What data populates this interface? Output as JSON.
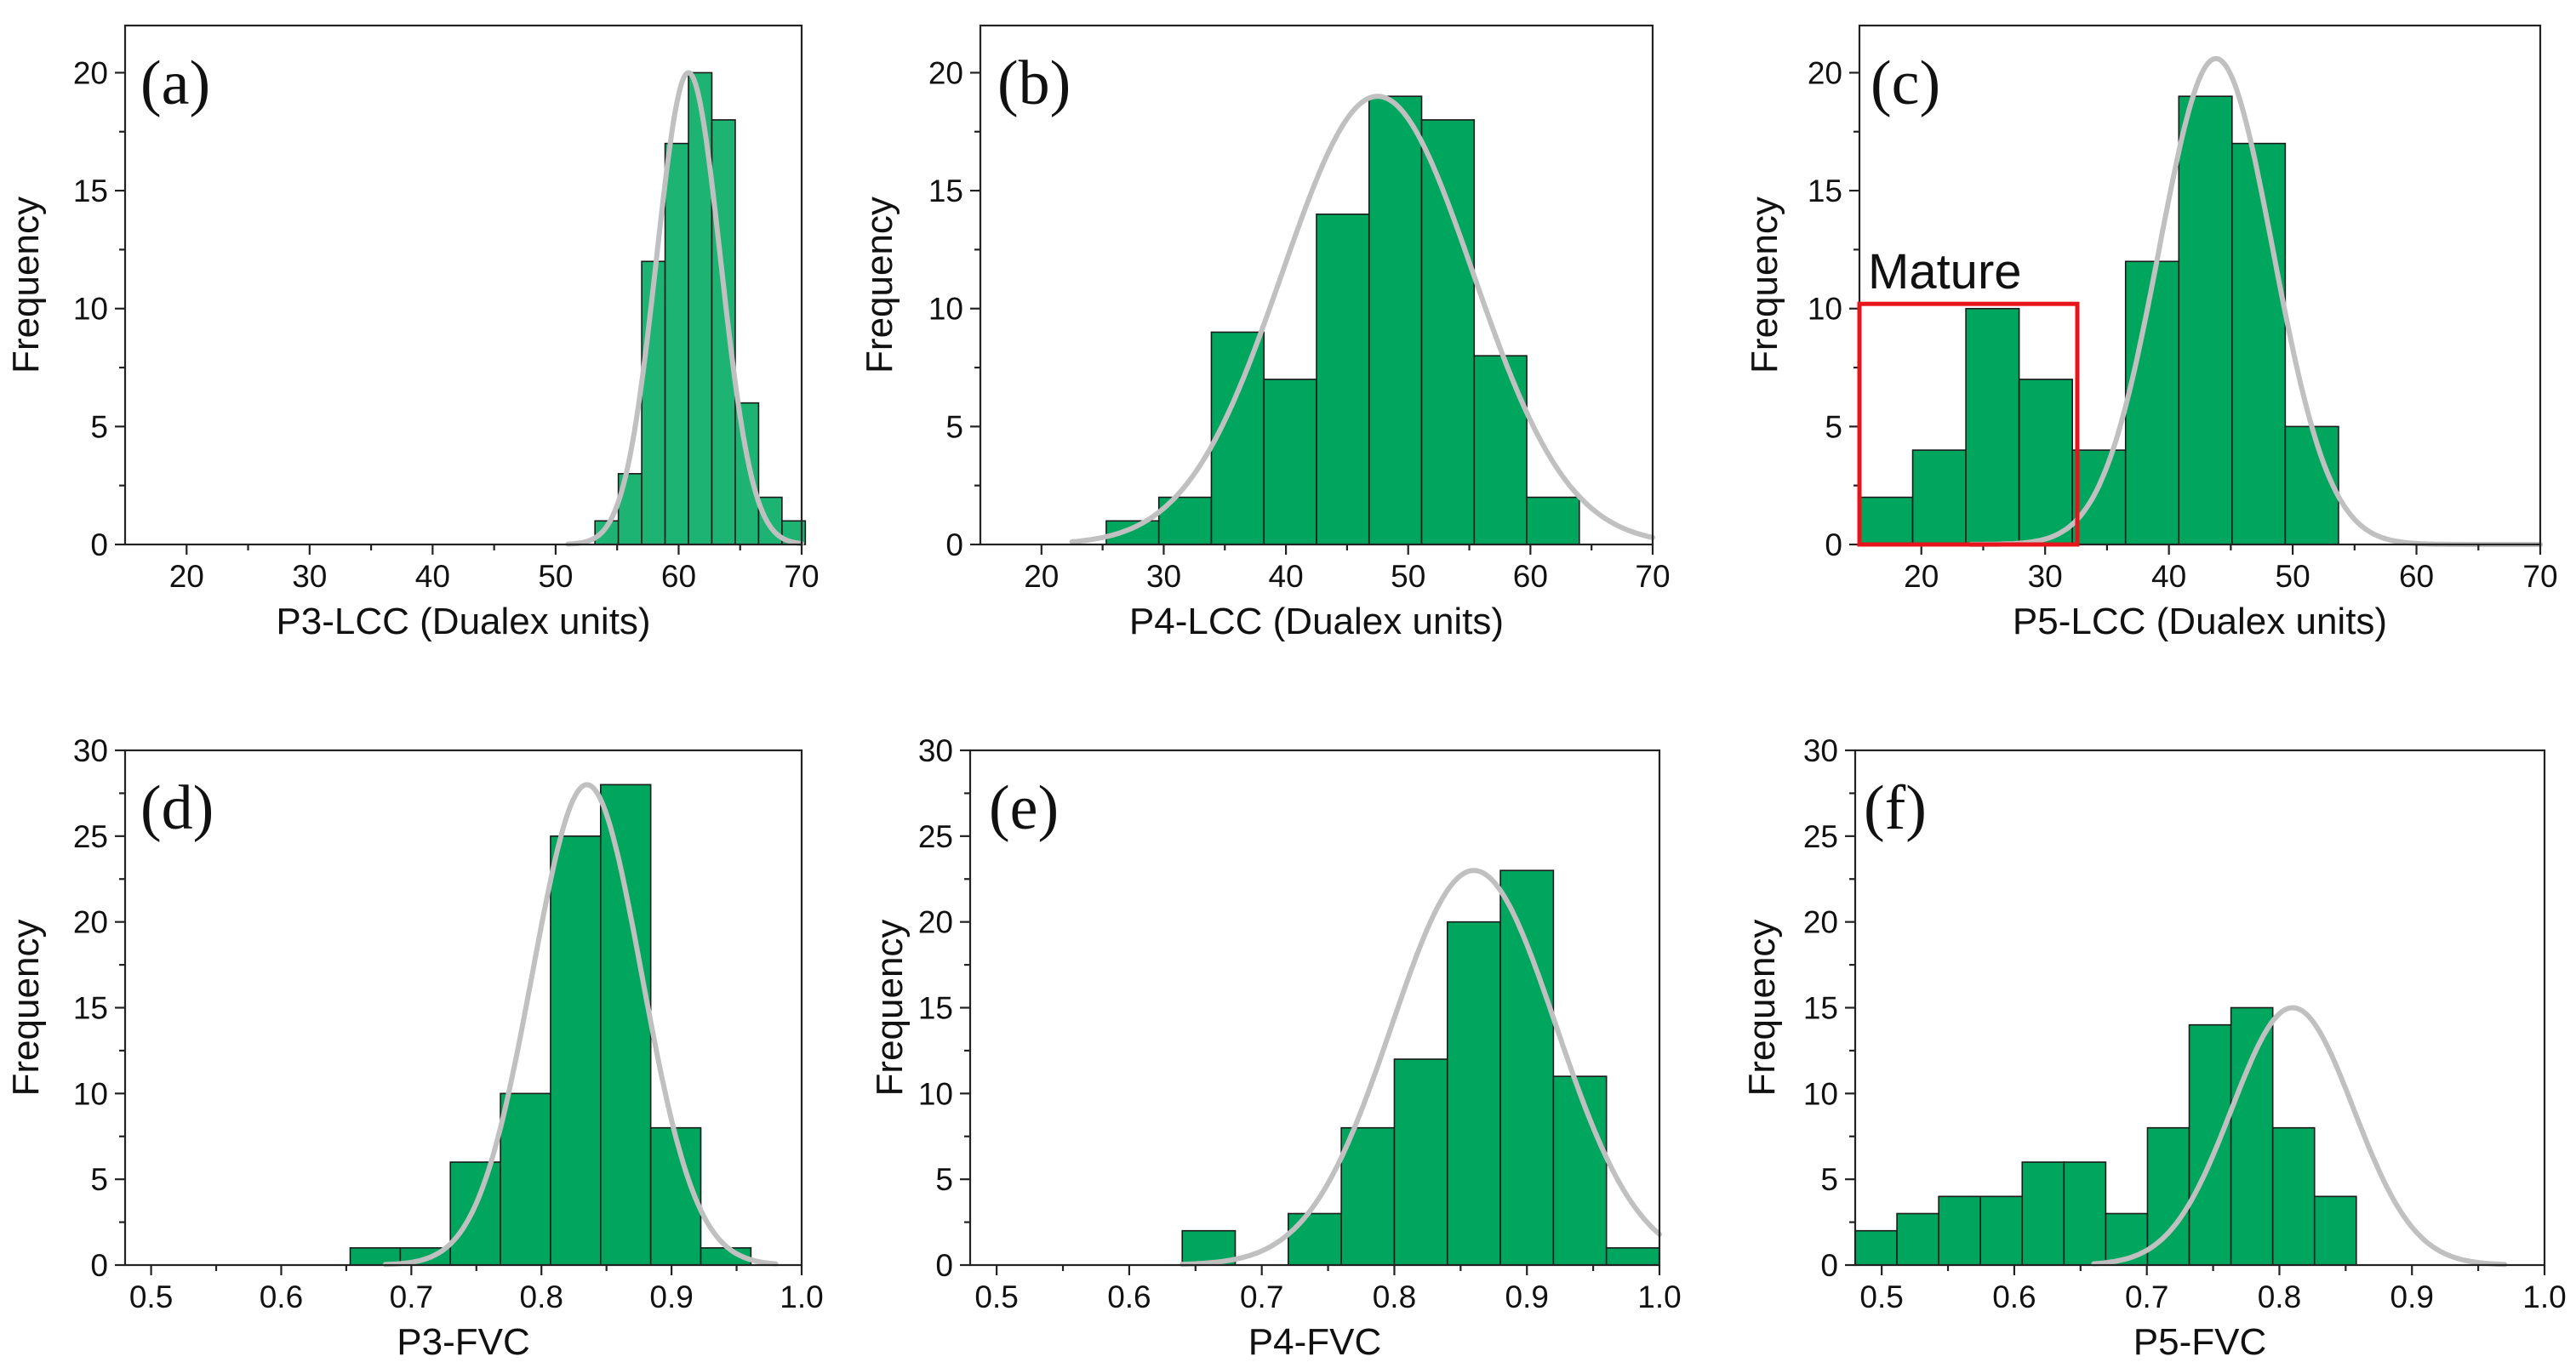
{
  "colors": {
    "bar_fill": "#00a65e",
    "bar_fill_alt": "#1db373",
    "curve": "#c0c0c0",
    "highlight": "#e8141b"
  },
  "chart_data": [
    {
      "panel": "(a)",
      "type": "bar",
      "title": "",
      "xlabel": "P3-LCC (Dualex units)",
      "ylabel": "Frequency",
      "xlim": [
        15,
        70
      ],
      "ylim": [
        0,
        22
      ],
      "xticks": [
        20,
        30,
        40,
        50,
        60,
        70
      ],
      "xtick_labels": [
        "20",
        "30",
        "40",
        "50",
        "60",
        "70"
      ],
      "yticks": [
        0,
        5,
        10,
        15,
        20
      ],
      "ytick_labels": [
        "0",
        "5",
        "10",
        "15",
        "20"
      ],
      "bin_width": 1.9,
      "bins": [
        {
          "x0": 53.2,
          "value": 1
        },
        {
          "x0": 55.1,
          "value": 3
        },
        {
          "x0": 57.0,
          "value": 12
        },
        {
          "x0": 58.9,
          "value": 17
        },
        {
          "x0": 60.8,
          "value": 20
        },
        {
          "x0": 62.7,
          "value": 18
        },
        {
          "x0": 64.6,
          "value": 6
        },
        {
          "x0": 66.5,
          "value": 2
        },
        {
          "x0": 68.4,
          "value": 1
        }
      ],
      "fit": {
        "mean": 60.8,
        "sd": 2.6,
        "peak": 20,
        "range": [
          51.0,
          70.0
        ]
      }
    },
    {
      "panel": "(b)",
      "type": "bar",
      "title": "",
      "xlabel": "P4-LCC (Dualex units)",
      "ylabel": "Frequency",
      "xlim": [
        15,
        70
      ],
      "ylim": [
        0,
        22
      ],
      "xticks": [
        20,
        30,
        40,
        50,
        60,
        70
      ],
      "xtick_labels": [
        "20",
        "30",
        "40",
        "50",
        "60",
        "70"
      ],
      "yticks": [
        0,
        5,
        10,
        15,
        20
      ],
      "ytick_labels": [
        "0",
        "5",
        "10",
        "15",
        "20"
      ],
      "bin_width": 4.3,
      "bins": [
        {
          "x0": 25.3,
          "value": 1
        },
        {
          "x0": 29.6,
          "value": 2
        },
        {
          "x0": 33.9,
          "value": 9
        },
        {
          "x0": 38.2,
          "value": 7
        },
        {
          "x0": 42.5,
          "value": 14
        },
        {
          "x0": 46.8,
          "value": 19
        },
        {
          "x0": 51.1,
          "value": 18
        },
        {
          "x0": 55.4,
          "value": 8
        },
        {
          "x0": 59.7,
          "value": 2
        }
      ],
      "fit": {
        "mean": 47.5,
        "sd": 7.8,
        "peak": 19,
        "range": [
          22.5,
          70.0
        ]
      }
    },
    {
      "panel": "(c)",
      "type": "bar",
      "title": "",
      "xlabel": "P5-LCC (Dualex units)",
      "ylabel": "Frequency",
      "xlim": [
        15,
        70
      ],
      "ylim": [
        0,
        22
      ],
      "xticks": [
        20,
        30,
        40,
        50,
        60,
        70
      ],
      "xtick_labels": [
        "20",
        "30",
        "40",
        "50",
        "60",
        "70"
      ],
      "yticks": [
        0,
        5,
        10,
        15,
        20
      ],
      "ytick_labels": [
        "0",
        "5",
        "10",
        "15",
        "20"
      ],
      "bin_width": 4.3,
      "bins": [
        {
          "x0": 15.0,
          "value": 2
        },
        {
          "x0": 19.3,
          "value": 4
        },
        {
          "x0": 23.6,
          "value": 10
        },
        {
          "x0": 27.9,
          "value": 7
        },
        {
          "x0": 32.2,
          "value": 4
        },
        {
          "x0": 36.5,
          "value": 12
        },
        {
          "x0": 40.8,
          "value": 19
        },
        {
          "x0": 45.1,
          "value": 17
        },
        {
          "x0": 49.4,
          "value": 5
        }
      ],
      "fit": {
        "mean": 43.8,
        "sd": 4.6,
        "peak": 20.6,
        "range": [
          24.0,
          70.0
        ]
      },
      "annotation": {
        "text": "Mature",
        "x_range": [
          15.0,
          32.6
        ],
        "y_range": [
          0,
          10.2
        ]
      }
    },
    {
      "panel": "(d)",
      "type": "bar",
      "title": "",
      "xlabel": "P3-FVC",
      "ylabel": "Frequency",
      "xlim": [
        0.48,
        1.0
      ],
      "ylim": [
        0,
        30
      ],
      "xticks": [
        0.5,
        0.6,
        0.7,
        0.8,
        0.9,
        1.0
      ],
      "xtick_labels": [
        "0.5",
        "0.6",
        "0.7",
        "0.8",
        "0.9",
        "1.0"
      ],
      "yticks": [
        0,
        5,
        10,
        15,
        20,
        25,
        30
      ],
      "ytick_labels": [
        "0",
        "5",
        "10",
        "15",
        "20",
        "25",
        "30"
      ],
      "bin_width": 0.0385,
      "bins": [
        {
          "x0": 0.653,
          "value": 1
        },
        {
          "x0": 0.6915,
          "value": 1
        },
        {
          "x0": 0.73,
          "value": 6
        },
        {
          "x0": 0.7685,
          "value": 10
        },
        {
          "x0": 0.807,
          "value": 25
        },
        {
          "x0": 0.8455,
          "value": 28
        },
        {
          "x0": 0.884,
          "value": 8
        },
        {
          "x0": 0.9225,
          "value": 1
        }
      ],
      "fit": {
        "mean": 0.835,
        "sd": 0.042,
        "peak": 28,
        "range": [
          0.68,
          0.98
        ]
      }
    },
    {
      "panel": "(e)",
      "type": "bar",
      "title": "",
      "xlabel": "P4-FVC",
      "ylabel": "Frequency",
      "xlim": [
        0.48,
        1.0
      ],
      "ylim": [
        0,
        30
      ],
      "xticks": [
        0.5,
        0.6,
        0.7,
        0.8,
        0.9,
        1.0
      ],
      "xtick_labels": [
        "0.5",
        "0.6",
        "0.7",
        "0.8",
        "0.9",
        "1.0"
      ],
      "yticks": [
        0,
        5,
        10,
        15,
        20,
        25,
        30
      ],
      "ytick_labels": [
        "0",
        "5",
        "10",
        "15",
        "20",
        "25",
        "30"
      ],
      "bin_width": 0.04,
      "bins": [
        {
          "x0": 0.64,
          "value": 2
        },
        {
          "x0": 0.68,
          "value": 0
        },
        {
          "x0": 0.72,
          "value": 3
        },
        {
          "x0": 0.76,
          "value": 8
        },
        {
          "x0": 0.8,
          "value": 12
        },
        {
          "x0": 0.84,
          "value": 20
        },
        {
          "x0": 0.88,
          "value": 23
        },
        {
          "x0": 0.92,
          "value": 11
        },
        {
          "x0": 0.96,
          "value": 1
        }
      ],
      "fit": {
        "mean": 0.86,
        "sd": 0.062,
        "peak": 23,
        "range": [
          0.64,
          1.0
        ]
      }
    },
    {
      "panel": "(f)",
      "type": "bar",
      "title": "",
      "xlabel": "P5-FVC",
      "ylabel": "Frequency",
      "xlim": [
        0.48,
        1.0
      ],
      "ylim": [
        0,
        30
      ],
      "xticks": [
        0.5,
        0.6,
        0.7,
        0.8,
        0.9,
        1.0
      ],
      "xtick_labels": [
        "0.5",
        "0.6",
        "0.7",
        "0.8",
        "0.9",
        "1.0"
      ],
      "yticks": [
        0,
        5,
        10,
        15,
        20,
        25,
        30
      ],
      "ytick_labels": [
        "0",
        "5",
        "10",
        "15",
        "20",
        "25",
        "30"
      ],
      "bin_width": 0.0315,
      "bins": [
        {
          "x0": 0.48,
          "value": 2
        },
        {
          "x0": 0.5115,
          "value": 3
        },
        {
          "x0": 0.543,
          "value": 4
        },
        {
          "x0": 0.5745,
          "value": 4
        },
        {
          "x0": 0.606,
          "value": 6
        },
        {
          "x0": 0.6375,
          "value": 6
        },
        {
          "x0": 0.669,
          "value": 3
        },
        {
          "x0": 0.7005,
          "value": 8
        },
        {
          "x0": 0.732,
          "value": 14
        },
        {
          "x0": 0.7635,
          "value": 15
        },
        {
          "x0": 0.795,
          "value": 8
        },
        {
          "x0": 0.8265,
          "value": 4
        }
      ],
      "fit": {
        "mean": 0.81,
        "sd": 0.046,
        "peak": 15,
        "range": [
          0.66,
          0.97
        ]
      }
    }
  ]
}
